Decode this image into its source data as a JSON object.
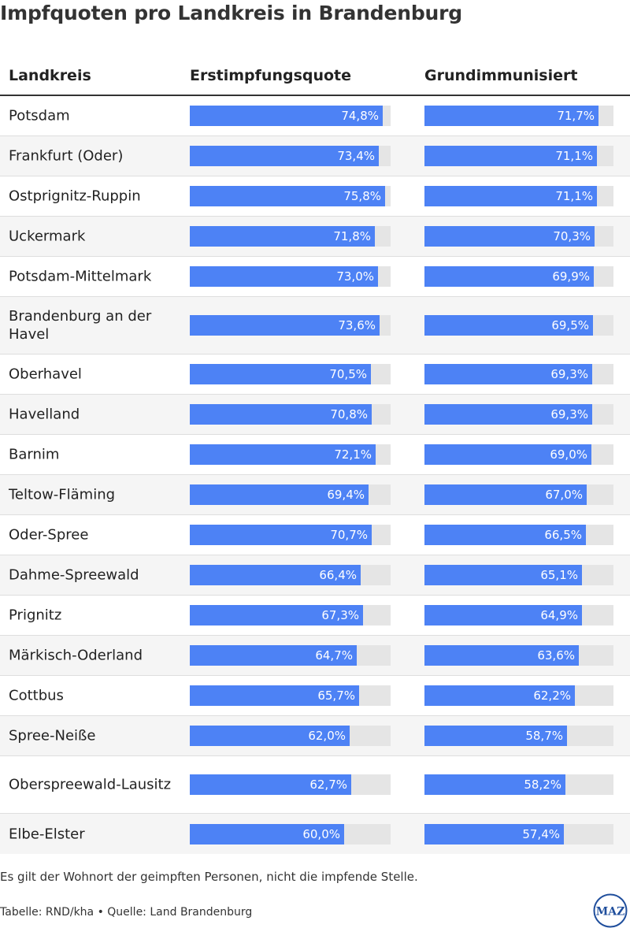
{
  "title": "Impfquoten pro Landkreis in Brandenburg",
  "columns": {
    "kreis": "Landkreis",
    "erst": "Erstimpfungsquote",
    "grund": "Grundimmunisiert"
  },
  "colors": {
    "bar": "#4d82f5",
    "track": "#e5e5e5"
  },
  "chart_data": {
    "type": "table",
    "scale_max": 78,
    "rows": [
      {
        "kreis": "Potsdam",
        "erst": 74.8,
        "erst_label": "74,8%",
        "grund": 71.7,
        "grund_label": "71,7%"
      },
      {
        "kreis": "Frankfurt (Oder)",
        "erst": 73.4,
        "erst_label": "73,4%",
        "grund": 71.1,
        "grund_label": "71,1%"
      },
      {
        "kreis": "Ostprignitz-Ruppin",
        "erst": 75.8,
        "erst_label": "75,8%",
        "grund": 71.1,
        "grund_label": "71,1%"
      },
      {
        "kreis": "Uckermark",
        "erst": 71.8,
        "erst_label": "71,8%",
        "grund": 70.3,
        "grund_label": "70,3%"
      },
      {
        "kreis": "Potsdam-Mittelmark",
        "erst": 73.0,
        "erst_label": "73,0%",
        "grund": 69.9,
        "grund_label": "69,9%"
      },
      {
        "kreis": "Brandenburg an der Havel",
        "erst": 73.6,
        "erst_label": "73,6%",
        "grund": 69.5,
        "grund_label": "69,5%"
      },
      {
        "kreis": "Oberhavel",
        "erst": 70.5,
        "erst_label": "70,5%",
        "grund": 69.3,
        "grund_label": "69,3%"
      },
      {
        "kreis": "Havelland",
        "erst": 70.8,
        "erst_label": "70,8%",
        "grund": 69.3,
        "grund_label": "69,3%"
      },
      {
        "kreis": "Barnim",
        "erst": 72.1,
        "erst_label": "72,1%",
        "grund": 69.0,
        "grund_label": "69,0%"
      },
      {
        "kreis": "Teltow-Fläming",
        "erst": 69.4,
        "erst_label": "69,4%",
        "grund": 67.0,
        "grund_label": "67,0%"
      },
      {
        "kreis": "Oder-Spree",
        "erst": 70.7,
        "erst_label": "70,7%",
        "grund": 66.5,
        "grund_label": "66,5%"
      },
      {
        "kreis": "Dahme-Spreewald",
        "erst": 66.4,
        "erst_label": "66,4%",
        "grund": 65.1,
        "grund_label": "65,1%"
      },
      {
        "kreis": "Prignitz",
        "erst": 67.3,
        "erst_label": "67,3%",
        "grund": 64.9,
        "grund_label": "64,9%"
      },
      {
        "kreis": "Märkisch-Oderland",
        "erst": 64.7,
        "erst_label": "64,7%",
        "grund": 63.6,
        "grund_label": "63,6%"
      },
      {
        "kreis": "Cottbus",
        "erst": 65.7,
        "erst_label": "65,7%",
        "grund": 62.2,
        "grund_label": "62,2%"
      },
      {
        "kreis": "Spree-Neiße",
        "erst": 62.0,
        "erst_label": "62,0%",
        "grund": 58.7,
        "grund_label": "58,7%"
      },
      {
        "kreis": "Oberspreewald-Lausitz",
        "erst": 62.7,
        "erst_label": "62,7%",
        "grund": 58.2,
        "grund_label": "58,2%"
      },
      {
        "kreis": "Elbe-Elster",
        "erst": 60.0,
        "erst_label": "60,0%",
        "grund": 57.4,
        "grund_label": "57,4%"
      }
    ]
  },
  "note": "Es gilt der Wohnort der geimpften Personen, nicht die impfende Stelle.",
  "source": "Tabelle: RND/kha • Quelle: Land Brandenburg",
  "logo_text": "MAZ"
}
